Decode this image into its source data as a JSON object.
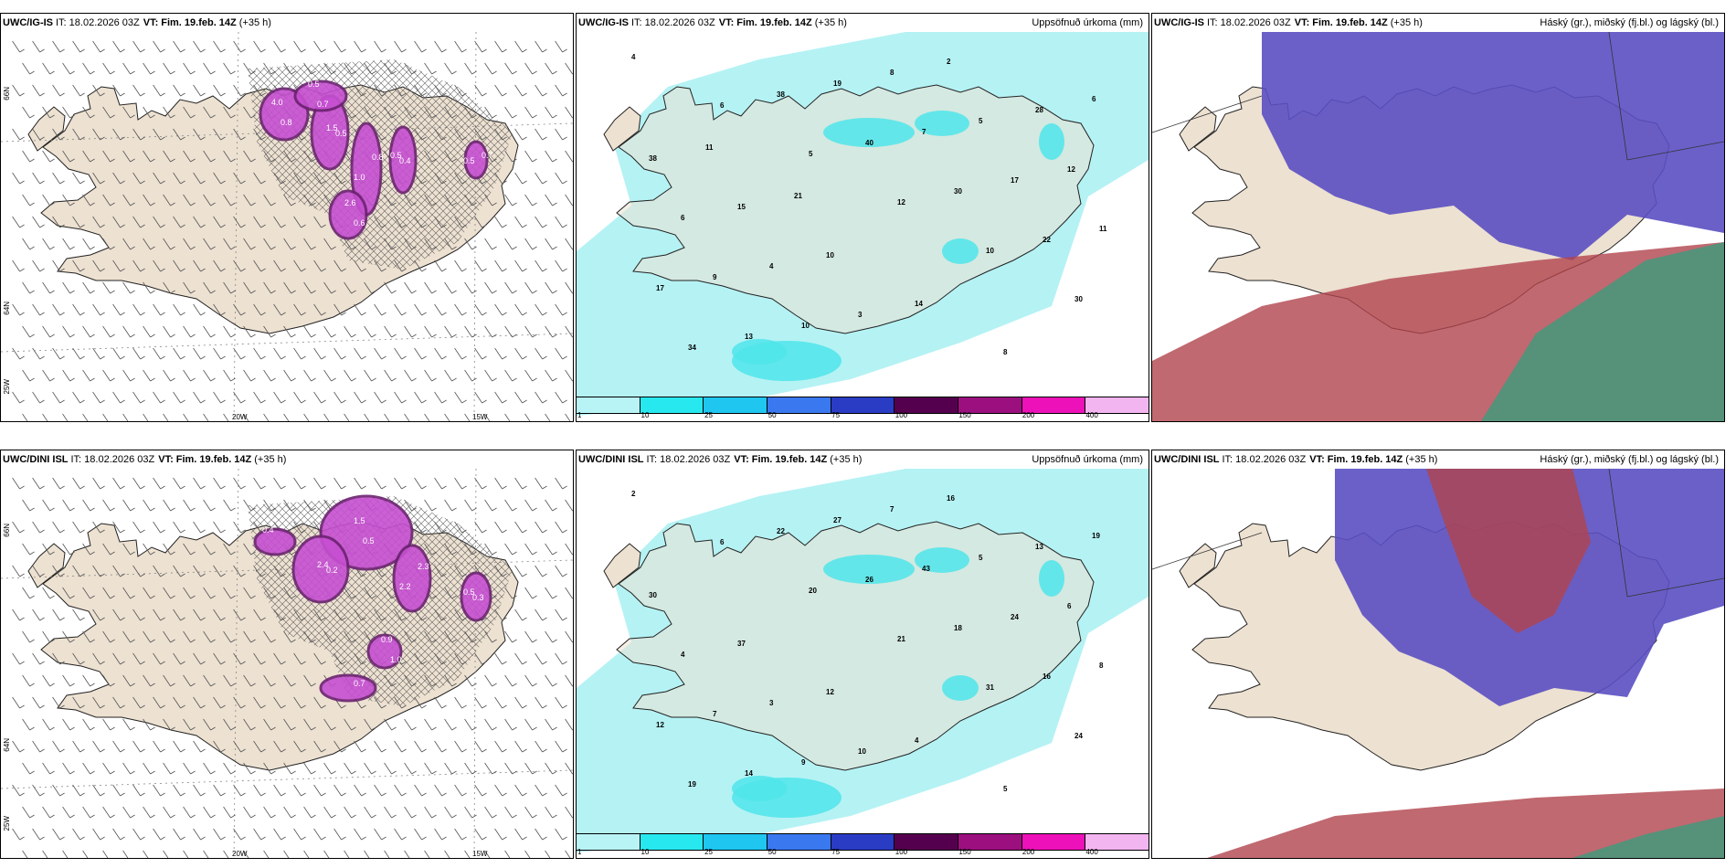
{
  "panels": [
    {
      "model": "UWC/IG-IS",
      "it_label": "IT: 18.02.2026 03Z",
      "vt_label": "VT:",
      "vt": "Fim. 19.feb. 14Z",
      "lead": "(+35 h)",
      "right": "",
      "kind": "snow",
      "grid": {
        "x1": "20W",
        "x2": "15W",
        "y1": "66N",
        "y2": "64N",
        "y3": "25W"
      },
      "values": [
        "4.0",
        "1.5",
        "0.8",
        "0.5",
        "2.6",
        "0.7",
        "0.5",
        "0.8",
        "0.5",
        "1.0",
        "0.4",
        "0.6",
        "0.5",
        "0.7"
      ]
    },
    {
      "model": "UWC/IG-IS",
      "it_label": "IT: 18.02.2026 03Z",
      "vt_label": "VT:",
      "vt": "Fim. 19.feb. 14Z",
      "lead": "(+35 h)",
      "right": "Uppsöfnuð úrkoma (mm)",
      "kind": "precip",
      "values": [
        "4",
        "6",
        "5",
        "12",
        "10",
        "30",
        "34",
        "38",
        "40",
        "30",
        "22",
        "17",
        "13",
        "19",
        "7",
        "17",
        "11",
        "9",
        "10",
        "8",
        "5",
        "12",
        "6",
        "4",
        "3",
        "2",
        "28",
        "38",
        "15",
        "10",
        "14",
        "8",
        "6",
        "11",
        "21"
      ]
    },
    {
      "model": "UWC/IG-IS",
      "it_label": "IT: 18.02.2026 03Z",
      "vt_label": "VT:",
      "vt": "Fim. 19.feb. 14Z",
      "lead": "(+35 h)",
      "right": "Háský (gr.), miðský (fj.bl.) og lágský (bl.)",
      "kind": "cloud"
    },
    {
      "model": "UWC/DINI ISL",
      "it_label": "IT: 18.02.2026 03Z",
      "vt_label": "VT:",
      "vt": "Fim. 19.feb. 14Z",
      "lead": "(+35 h)",
      "right": "",
      "kind": "snow",
      "grid": {
        "x1": "20W",
        "x2": "15W",
        "y1": "66N",
        "y2": "64N",
        "y3": "25W"
      },
      "values": [
        "1.5",
        "2.4",
        "2.3",
        "0.5",
        "0.9",
        "0.7",
        "0.4",
        "0.5",
        "0.2",
        "2.2",
        "0.3",
        "1.0"
      ]
    },
    {
      "model": "UWC/DINI ISL",
      "it_label": "IT: 18.02.2026 03Z",
      "vt_label": "VT:",
      "vt": "Fim. 19.feb. 14Z",
      "lead": "(+35 h)",
      "right": "Uppsöfnuð úrkoma (mm)",
      "kind": "precip",
      "values": [
        "2",
        "6",
        "20",
        "21",
        "31",
        "24",
        "19",
        "22",
        "26",
        "18",
        "16",
        "12",
        "14",
        "27",
        "43",
        "24",
        "8",
        "7",
        "9",
        "7",
        "5",
        "6",
        "4",
        "3",
        "10",
        "16",
        "13",
        "30",
        "37",
        "12",
        "4",
        "5",
        "19"
      ]
    },
    {
      "model": "UWC/DINI ISL",
      "it_label": "IT: 18.02.2026 03Z",
      "vt_label": "VT:",
      "vt": "Fim. 19.feb. 14Z",
      "lead": "(+35 h)",
      "right": "Háský (gr.), miðský (fj.bl.) og lágský (bl.)",
      "kind": "cloud"
    }
  ],
  "colorbar": {
    "ticks": [
      "1",
      "10",
      "25",
      "50",
      "75",
      "100",
      "150",
      "200",
      "400"
    ],
    "colors": [
      "#b8f4f6",
      "#28e8ef",
      "#1ec6f0",
      "#3a78ef",
      "#2a3cc4",
      "#55004e",
      "#9b0f7f",
      "#ec11b8",
      "#f3b5f0"
    ]
  },
  "colors": {
    "land": "#ede1d1",
    "sea": "#ffffff",
    "precip_light": "#b5f2f4",
    "precip_mid": "#4fe5ea",
    "snow": "#c64fd1",
    "snow_dark": "#6b2270",
    "high_cloud": "#5a4fc2",
    "mid_cloud": "#b0434c",
    "low_cloud": "#2aa37f"
  }
}
